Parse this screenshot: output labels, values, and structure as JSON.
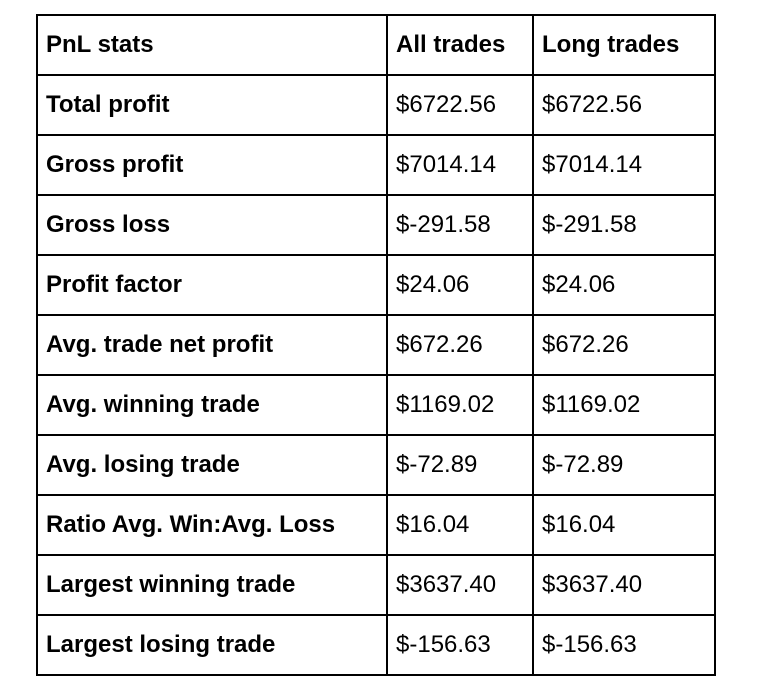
{
  "table": {
    "headers": [
      "PnL stats",
      "All trades",
      "Long trades"
    ],
    "rows": [
      {
        "label": "Total profit",
        "all": "$6722.56",
        "long": "$6722.56"
      },
      {
        "label": "Gross profit",
        "all": "$7014.14",
        "long": "$7014.14"
      },
      {
        "label": "Gross loss",
        "all": "$-291.58",
        "long": "$-291.58"
      },
      {
        "label": "Profit factor",
        "all": "$24.06",
        "long": "$24.06"
      },
      {
        "label": "Avg. trade net profit",
        "all": "$672.26",
        "long": "$672.26"
      },
      {
        "label": "Avg. winning trade",
        "all": "$1169.02",
        "long": "$1169.02"
      },
      {
        "label": "Avg. losing trade",
        "all": "$-72.89",
        "long": "$-72.89"
      },
      {
        "label": "Ratio Avg. Win:Avg. Loss",
        "all": "$16.04",
        "long": "$16.04"
      },
      {
        "label": "Largest winning trade",
        "all": "$3637.40",
        "long": "$3637.40"
      },
      {
        "label": "Largest losing trade",
        "all": "$-156.63",
        "long": "$-156.63"
      }
    ]
  }
}
